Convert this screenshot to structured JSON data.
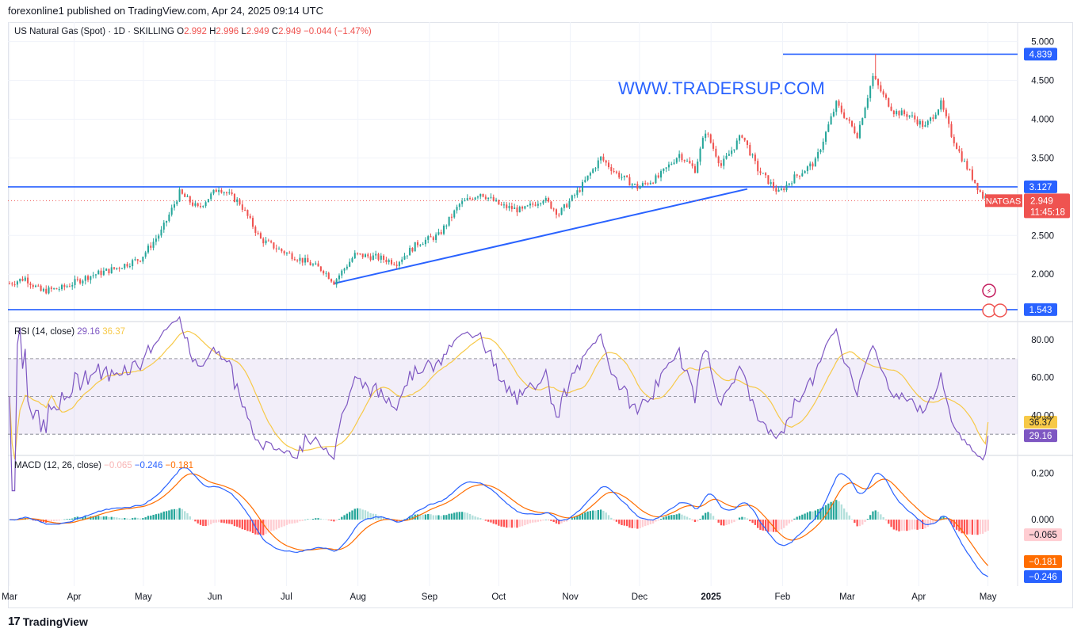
{
  "header": {
    "publisher": "forexonline1 published on TradingView.com, Apr 24, 2025 09:14 UTC"
  },
  "legend": {
    "symbol": "US Natural Gas (Spot) · 1D · SKILLING",
    "o_label": "O",
    "o": "2.992",
    "h_label": "H",
    "h": "2.996",
    "l_label": "L",
    "l": "2.949",
    "c_label": "C",
    "c": "2.949",
    "change": "−0.044 (−1.47%)"
  },
  "watermark": "WWW.TRADERSUP.COM",
  "rsi_legend": {
    "label": "RSI (14, close)",
    "rsi": "29.16",
    "ma": "36.37"
  },
  "macd_legend": {
    "label": "MACD (12, 26, close)",
    "hist": "−0.065",
    "macd": "−0.246",
    "signal": "−0.181"
  },
  "footer": {
    "brand": "TradingView"
  },
  "colors": {
    "up": "#26a69a",
    "down": "#ef5350",
    "blue": "#2962ff",
    "rsi": "#7e57c2",
    "rsi_ma": "#f7c948",
    "signal": "#ff6d00",
    "macd": "#2962ff"
  },
  "chart_data": [
    {
      "type": "candlestick",
      "title": "US Natural Gas (Spot) · 1D · SKILLING",
      "y_ticks": [
        "5.000",
        "4.500",
        "4.000",
        "3.500",
        "2.500",
        "2.000"
      ],
      "ylim": [
        1.45,
        5.15
      ],
      "x_ticks": [
        "Mar",
        "Apr",
        "May",
        "Jun",
        "Jul",
        "Aug",
        "Sep",
        "Oct",
        "Nov",
        "Dec",
        "2025",
        "Feb",
        "Mar",
        "Apr",
        "May"
      ],
      "close_anchors": [
        [
          0,
          1.88
        ],
        [
          6,
          1.95
        ],
        [
          12,
          1.78
        ],
        [
          20,
          1.82
        ],
        [
          30,
          1.97
        ],
        [
          40,
          2.07
        ],
        [
          50,
          2.2
        ],
        [
          58,
          2.55
        ],
        [
          65,
          3.05
        ],
        [
          72,
          2.85
        ],
        [
          80,
          3.12
        ],
        [
          88,
          2.92
        ],
        [
          96,
          2.45
        ],
        [
          104,
          2.3
        ],
        [
          112,
          2.18
        ],
        [
          120,
          2.05
        ],
        [
          124,
          1.9
        ],
        [
          132,
          2.25
        ],
        [
          140,
          2.22
        ],
        [
          148,
          2.15
        ],
        [
          156,
          2.4
        ],
        [
          164,
          2.5
        ],
        [
          172,
          2.9
        ],
        [
          180,
          3.05
        ],
        [
          188,
          2.88
        ],
        [
          196,
          2.82
        ],
        [
          204,
          2.98
        ],
        [
          210,
          2.78
        ],
        [
          218,
          3.1
        ],
        [
          226,
          3.5
        ],
        [
          232,
          3.3
        ],
        [
          240,
          3.12
        ],
        [
          248,
          3.25
        ],
        [
          256,
          3.55
        ],
        [
          262,
          3.35
        ],
        [
          266,
          3.85
        ],
        [
          272,
          3.4
        ],
        [
          280,
          3.8
        ],
        [
          286,
          3.35
        ],
        [
          294,
          3.05
        ],
        [
          300,
          3.25
        ],
        [
          308,
          3.45
        ],
        [
          316,
          4.2
        ],
        [
          320,
          4.0
        ],
        [
          324,
          3.8
        ],
        [
          330,
          4.55
        ],
        [
          334,
          4.3
        ],
        [
          338,
          4.1
        ],
        [
          344,
          4.05
        ],
        [
          350,
          3.9
        ],
        [
          356,
          4.2
        ],
        [
          360,
          3.8
        ],
        [
          364,
          3.5
        ],
        [
          368,
          3.25
        ],
        [
          372,
          3.0
        ]
      ],
      "price_lines": [
        {
          "value": 4.839,
          "label": "4.839"
        },
        {
          "value": 3.127,
          "label": "3.127"
        },
        {
          "value": 1.543,
          "label": "1.543"
        }
      ],
      "last_price": {
        "value": 2.949,
        "label": "2.949",
        "countdown": "11:45:18",
        "name": "NATGAS"
      },
      "trendline": [
        [
          124,
          1.88
        ],
        [
          282,
          3.1
        ]
      ]
    },
    {
      "type": "line",
      "title": "RSI (14, close)",
      "y_ticks": [
        "80.00",
        "60.00",
        "40.00"
      ],
      "ylim": [
        20,
        88
      ],
      "bands": [
        30,
        50,
        70
      ],
      "series": [
        {
          "name": "RSI",
          "last": 29.16
        },
        {
          "name": "RSI MA",
          "last": 36.37
        }
      ],
      "end_labels": [
        "36.37",
        "29.16"
      ]
    },
    {
      "type": "line",
      "title": "MACD (12, 26, close)",
      "y_ticks": [
        "0.200",
        "0.000"
      ],
      "ylim": [
        -0.28,
        0.26
      ],
      "series": [
        {
          "name": "MACD",
          "last": -0.246
        },
        {
          "name": "Signal",
          "last": -0.181
        },
        {
          "name": "Histogram",
          "last": -0.065
        }
      ],
      "end_labels": [
        "−0.065",
        "−0.181",
        "−0.246"
      ]
    }
  ]
}
